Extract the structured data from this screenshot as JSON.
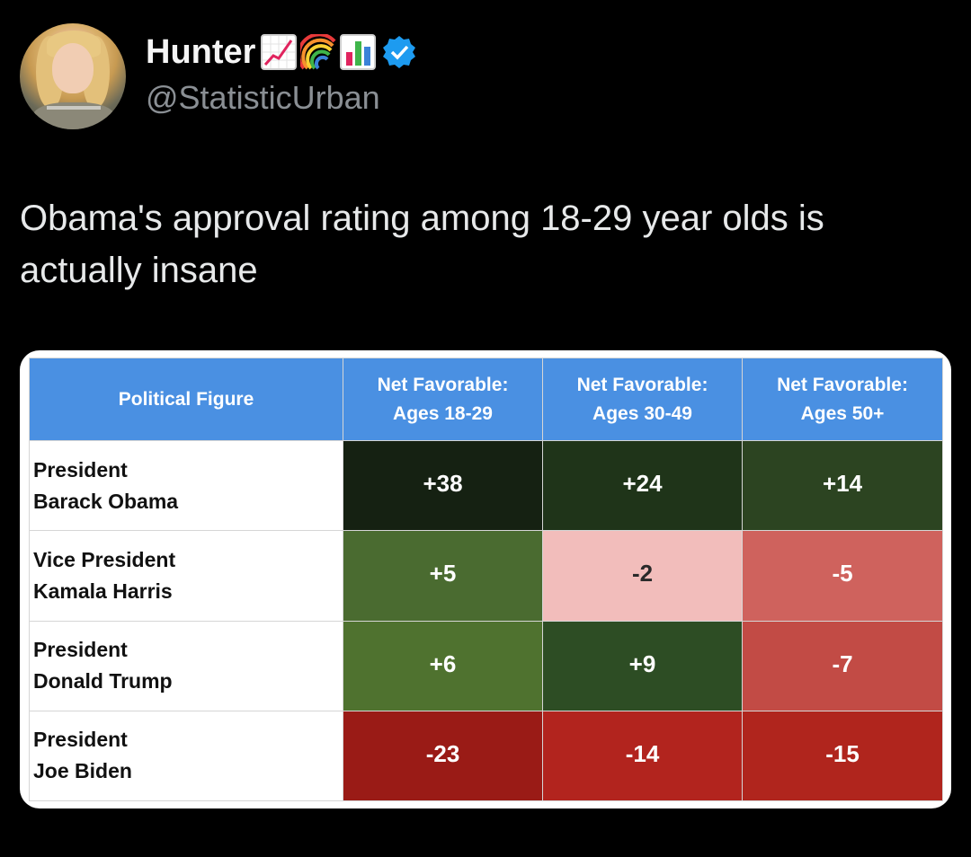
{
  "author": {
    "display_name": "Hunter",
    "name_emojis": [
      "chart-increasing-icon",
      "rainbow-icon",
      "bar-chart-icon"
    ],
    "verified": true,
    "handle": "@StatisticUrban"
  },
  "tweet": {
    "text_line1": "Obama's approval rating among 18-29 year olds is",
    "text_line2": "actually insane"
  },
  "colors": {
    "background": "#000000",
    "header_blue": "#4a90e2",
    "obama_18_29": "#152112",
    "obama_30_49": "#1f3419",
    "obama_50_plus": "#2c4421",
    "harris_18_29": "#4a6b30",
    "harris_30_49": "#f2bdbb",
    "harris_50_plus": "#cf625d",
    "trump_18_29": "#4f722f",
    "trump_30_49": "#2d4d24",
    "trump_50_plus": "#c24b45",
    "biden_18_29": "#9a1b16",
    "biden_30_49": "#b2241e",
    "biden_50_plus": "#b0251d"
  },
  "chart_data": {
    "type": "table",
    "columns": [
      "Political Figure",
      "Net Favorable: Ages 18-29",
      "Net Favorable: Ages 30-49",
      "Net Favorable: Ages 50+"
    ],
    "header": {
      "col0": "Political Figure",
      "col1_line1": "Net Favorable:",
      "col1_line2": "Ages 18-29",
      "col2_line1": "Net Favorable:",
      "col2_line2": "Ages 30-49",
      "col3_line1": "Net Favorable:",
      "col3_line2": "Ages 50+"
    },
    "rows": [
      {
        "title": "President",
        "name": "Barack Obama",
        "values": [
          "+38",
          "+24",
          "+14"
        ]
      },
      {
        "title": "Vice President",
        "name": "Kamala Harris",
        "values": [
          "+5",
          "-2",
          "-5"
        ]
      },
      {
        "title": "President",
        "name": "Donald Trump",
        "values": [
          "+6",
          "+9",
          "-7"
        ]
      },
      {
        "title": "President",
        "name": "Joe Biden",
        "values": [
          "-23",
          "-14",
          "-15"
        ]
      }
    ]
  }
}
